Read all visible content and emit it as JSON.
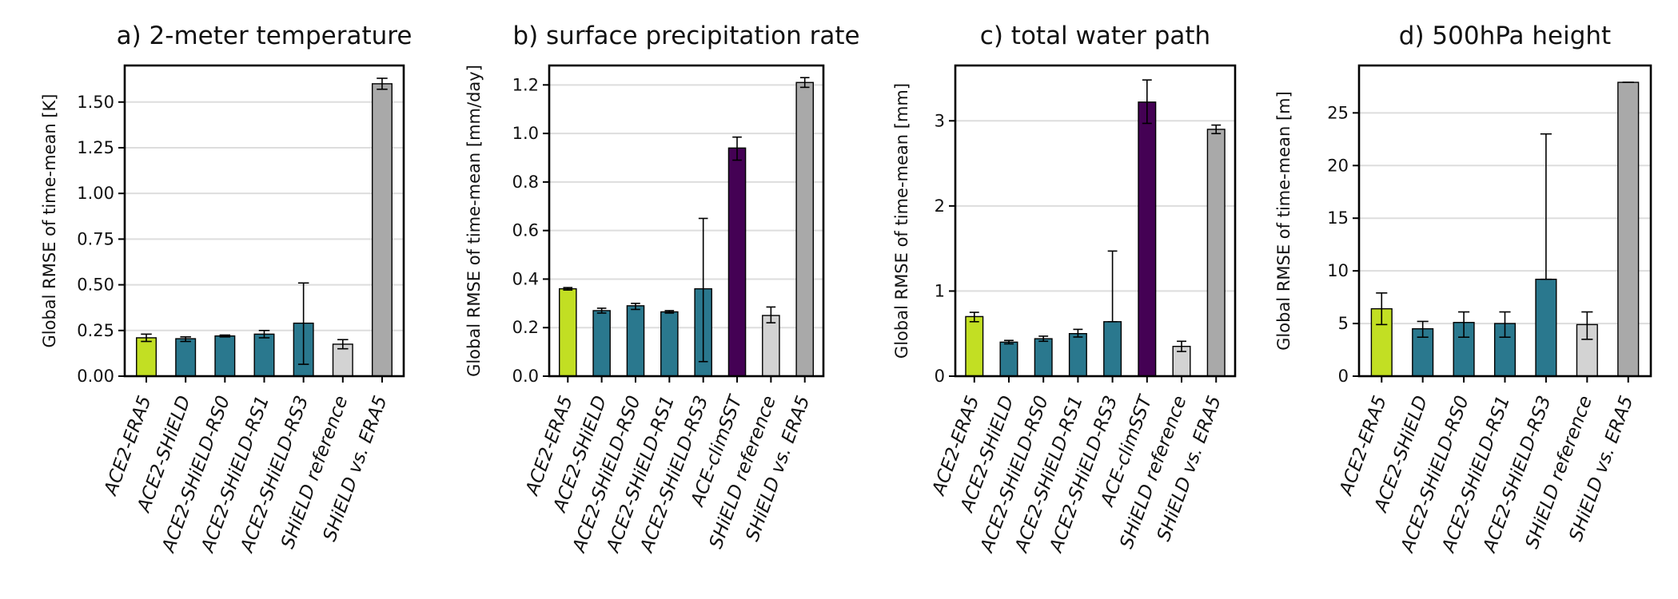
{
  "colors": {
    "ACE2-ERA5": "#c2df23",
    "ACE2-SHiELD": "#2a788e",
    "ACE2-SHiELD-RS0": "#2a788e",
    "ACE2-SHiELD-RS1": "#2a788e",
    "ACE2-SHiELD-RS3": "#2a788e",
    "ACE-climSST": "#440154",
    "SHiELD reference": "#d3d3d3",
    "SHiELD vs. ERA5": "#a9a9a9"
  },
  "chart_data": [
    {
      "type": "bar",
      "title": "a) 2-meter temperature",
      "ylabel": "Global RMSE of time-mean [K]",
      "ylim": [
        0,
        1.7
      ],
      "yticks": [
        0.0,
        0.25,
        0.5,
        0.75,
        1.0,
        1.25,
        1.5
      ],
      "ytick_labels": [
        "0.00",
        "0.25",
        "0.50",
        "0.75",
        "1.00",
        "1.25",
        "1.50"
      ],
      "grid": true,
      "categories": [
        "ACE2-ERA5",
        "ACE2-SHiELD",
        "ACE2-SHiELD-RS0",
        "ACE2-SHiELD-RS1",
        "ACE2-SHiELD-RS3",
        "SHiELD reference",
        "SHiELD vs. ERA5"
      ],
      "values": [
        0.21,
        0.205,
        0.22,
        0.23,
        0.29,
        0.175,
        1.6
      ],
      "err_low": [
        0.19,
        0.19,
        0.215,
        0.21,
        0.065,
        0.15,
        1.57
      ],
      "err_high": [
        0.23,
        0.215,
        0.225,
        0.25,
        0.51,
        0.2,
        1.63
      ]
    },
    {
      "type": "bar",
      "title": "b) surface precipitation rate",
      "ylabel": "Global RMSE of time-mean [mm/day]",
      "ylim": [
        0,
        1.28
      ],
      "yticks": [
        0.0,
        0.2,
        0.4,
        0.6,
        0.8,
        1.0,
        1.2
      ],
      "ytick_labels": [
        "0.0",
        "0.2",
        "0.4",
        "0.6",
        "0.8",
        "1.0",
        "1.2"
      ],
      "grid": true,
      "categories": [
        "ACE2-ERA5",
        "ACE2-SHiELD",
        "ACE2-SHiELD-RS0",
        "ACE2-SHiELD-RS1",
        "ACE2-SHiELD-RS3",
        "ACE-climSST",
        "SHiELD reference",
        "SHiELD vs. ERA5"
      ],
      "values": [
        0.36,
        0.27,
        0.29,
        0.265,
        0.36,
        0.94,
        0.25,
        1.21
      ],
      "err_low": [
        0.355,
        0.26,
        0.275,
        0.26,
        0.06,
        0.89,
        0.22,
        1.19
      ],
      "err_high": [
        0.365,
        0.28,
        0.3,
        0.27,
        0.65,
        0.985,
        0.285,
        1.23
      ]
    },
    {
      "type": "bar",
      "title": "c) total water path",
      "ylabel": "Global RMSE of time-mean [mm]",
      "ylim": [
        0,
        3.65
      ],
      "yticks": [
        0,
        1,
        2,
        3
      ],
      "ytick_labels": [
        "0",
        "1",
        "2",
        "3"
      ],
      "grid": true,
      "categories": [
        "ACE2-ERA5",
        "ACE2-SHiELD",
        "ACE2-SHiELD-RS0",
        "ACE2-SHiELD-RS1",
        "ACE2-SHiELD-RS3",
        "ACE-climSST",
        "SHiELD reference",
        "SHiELD vs. ERA5"
      ],
      "values": [
        0.7,
        0.4,
        0.44,
        0.5,
        0.64,
        3.22,
        0.35,
        2.9
      ],
      "err_low": [
        0.64,
        0.38,
        0.41,
        0.46,
        0.64,
        2.97,
        0.29,
        2.85
      ],
      "err_high": [
        0.75,
        0.42,
        0.47,
        0.55,
        1.47,
        3.48,
        0.41,
        2.95
      ]
    },
    {
      "type": "bar",
      "title": "d) 500hPa height",
      "ylabel": "Global RMSE of time-mean [m]",
      "ylim": [
        0,
        29.5
      ],
      "yticks": [
        0,
        5,
        10,
        15,
        20,
        25
      ],
      "ytick_labels": [
        "0",
        "5",
        "10",
        "15",
        "20",
        "25"
      ],
      "grid": true,
      "categories": [
        "ACE2-ERA5",
        "ACE2-SHiELD",
        "ACE2-SHiELD-RS0",
        "ACE2-SHiELD-RS1",
        "ACE2-SHiELD-RS3",
        "SHiELD reference",
        "SHiELD vs. ERA5"
      ],
      "values": [
        6.4,
        4.5,
        5.1,
        5.0,
        9.2,
        4.9,
        27.9
      ],
      "err_low": [
        4.9,
        3.7,
        3.7,
        3.7,
        9.2,
        3.5,
        27.9
      ],
      "err_high": [
        7.9,
        5.2,
        6.1,
        6.1,
        23.0,
        6.1,
        27.9
      ]
    }
  ]
}
